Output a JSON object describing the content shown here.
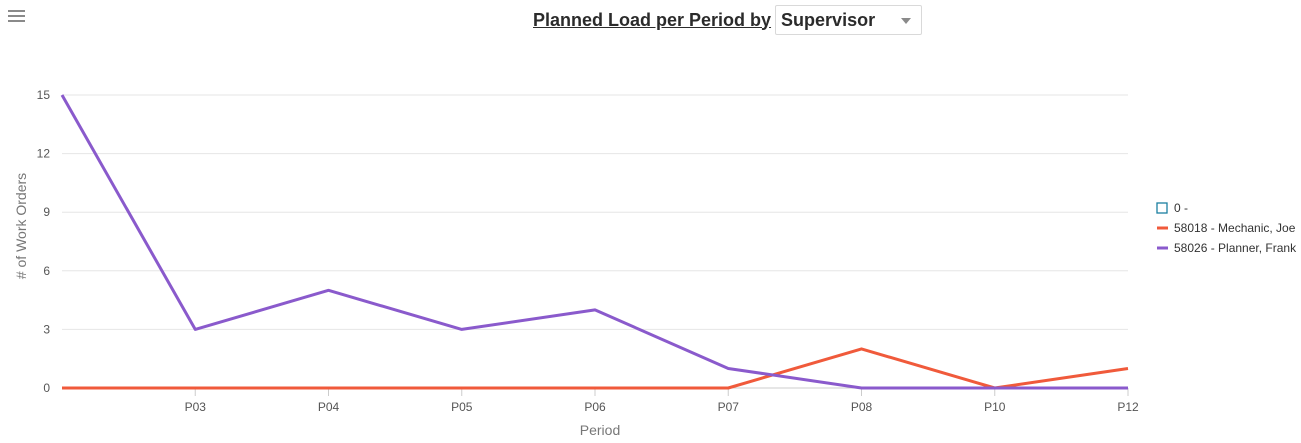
{
  "header": {
    "title": "Planned Load per Period by",
    "group_by_selected": "Supervisor"
  },
  "menu": {
    "icon": "hamburger-menu-icon"
  },
  "chart_data": {
    "type": "line",
    "title": "Planned Load per Period by Supervisor",
    "xlabel": "Period",
    "ylabel": "# of Work Orders",
    "categories": [
      "",
      "P03",
      "P04",
      "P05",
      "P06",
      "P07",
      "P08",
      "P10",
      "P12"
    ],
    "ylim": [
      0,
      15
    ],
    "yticks": [
      "0",
      "3",
      "6",
      "9",
      "12",
      "15"
    ],
    "grid": true,
    "legend_position": "right",
    "series": [
      {
        "name": "0 -",
        "color": "#1b7fa0",
        "marker": "hollow-square",
        "values": [
          null,
          null,
          null,
          null,
          null,
          null,
          null,
          null,
          null
        ]
      },
      {
        "name": "58018 - Mechanic, Joe",
        "color": "#f05a3b",
        "values": [
          0,
          0,
          0,
          0,
          0,
          0,
          2,
          0,
          1
        ]
      },
      {
        "name": "58026 - Planner, Frank",
        "color": "#8a5acc",
        "values": [
          15,
          3,
          5,
          3,
          4,
          1,
          0,
          0,
          0
        ]
      }
    ]
  }
}
